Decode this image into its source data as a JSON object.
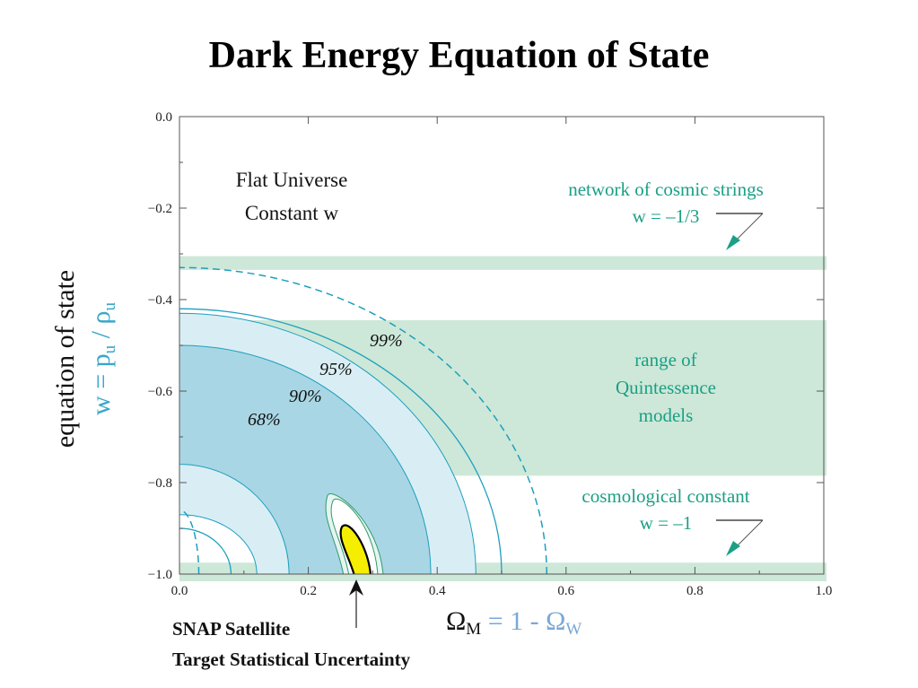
{
  "title": "Dark Energy Equation of State",
  "chart_data": {
    "type": "contour",
    "xlim": [
      0.0,
      1.0
    ],
    "ylim": [
      -1.0,
      0.0
    ],
    "x_ticks": [
      "0.0",
      "0.2",
      "0.4",
      "0.6",
      "0.8",
      "1.0"
    ],
    "y_ticks": [
      "0.0",
      "−0.2",
      "−0.4",
      "−0.6",
      "−0.8",
      "−1.0"
    ],
    "xlabel": {
      "main": "Ω",
      "main_sub": "M",
      "alt": " = 1 - Ω",
      "alt_sub": "W"
    },
    "ylabel": {
      "line1": "equation of state",
      "line2": "w = p",
      "p_sub": "u",
      "mid": " / ρ",
      "rho_sub": "u"
    },
    "annotation": [
      "Flat Universe",
      "Constant w"
    ],
    "bands": [
      {
        "label_lines": [
          "network of cosmic strings",
          "w = –1/3"
        ],
        "w_range": [
          -0.335,
          -0.305
        ]
      },
      {
        "label_lines": [
          "range of",
          "Quintessence",
          "models"
        ],
        "w_range": [
          -0.785,
          -0.445
        ]
      },
      {
        "label_lines": [
          "cosmological constant",
          "w = –1"
        ],
        "w_range": [
          -1.02,
          -0.975
        ]
      }
    ],
    "confidence_levels": [
      "68%",
      "90%",
      "95%",
      "99%"
    ],
    "contours": [
      {
        "level": "99%",
        "style": "dashed",
        "inner_x_at_w_min1": 0.03,
        "outer_x_at_w_min1": 0.57,
        "outer_w_at_x0": -0.33
      },
      {
        "level": "95%",
        "style": "solid",
        "inner_x_at_w_min1": 0.08,
        "outer_x_at_w_min1": 0.5,
        "outer_w_at_x0": -0.42
      },
      {
        "level": "90%",
        "style": "filled",
        "inner_x_at_w_min1": 0.12,
        "outer_x_at_w_min1": 0.46,
        "outer_w_at_x0": -0.43
      },
      {
        "level": "68%",
        "style": "filled",
        "inner_x_at_w_min1": 0.17,
        "outer_x_at_w_min1": 0.39,
        "outer_w_at_x0": -0.5
      }
    ],
    "snap_target": {
      "x": 0.28,
      "w": -1.0,
      "label_lines": [
        "SNAP Satellite",
        "Target Statistical Uncertainty"
      ]
    }
  },
  "colors": {
    "band": "#cde8d8",
    "c68": "#a9d6e4",
    "c90": "#d9eef4",
    "contour_line": "#1e9fbf",
    "annotation_green": "#1b9f86",
    "ylabel_blue": "#3aa7c9",
    "xlabel_blue": "#7aa8d6",
    "snap_fill": "#f5ee00"
  }
}
